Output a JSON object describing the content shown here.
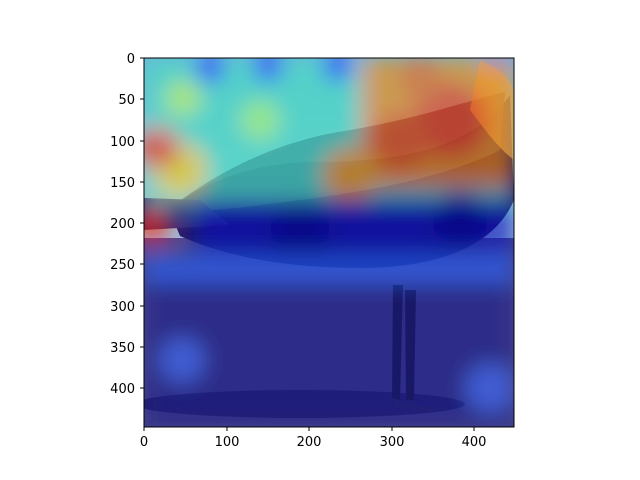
{
  "figure": {
    "kind": "attention heatmap overlay on photograph",
    "image_subject": "seagull standing on a surface, side view",
    "colormap": "jet",
    "x_axis": {
      "min": 0,
      "max": 448,
      "ticks": [
        "0",
        "100",
        "200",
        "300",
        "400"
      ]
    },
    "y_axis": {
      "min": 0,
      "max": 448,
      "inverted": true,
      "ticks": [
        "0",
        "50",
        "100",
        "150",
        "200",
        "250",
        "300",
        "350",
        "400"
      ]
    }
  },
  "heat_palette": [
    "#000080",
    "#0000ff",
    "#00a0ff",
    "#00ffff",
    "#80ff80",
    "#ffff00",
    "#ff8000",
    "#ff0000",
    "#800000"
  ]
}
